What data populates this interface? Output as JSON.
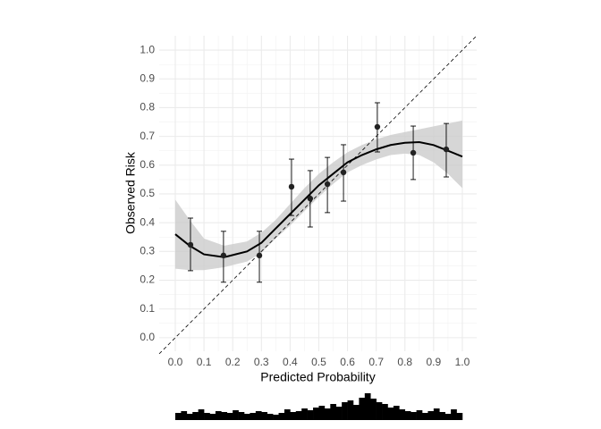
{
  "chart_data": {
    "type": "calibration",
    "xlabel": "Predicted Probability",
    "ylabel": "Observed Risk",
    "xlim": [
      -0.056,
      1.05
    ],
    "ylim": [
      -0.047,
      1.05
    ],
    "xticks": [
      {
        "value": 0,
        "label": "0.0"
      },
      0.1,
      0.2,
      0.3,
      0.4,
      0.5,
      0.6,
      0.7,
      0.8,
      0.9,
      {
        "value": 1,
        "label": "1.0"
      }
    ],
    "yticks": [
      {
        "value": 0,
        "label": "0.0"
      },
      0.1,
      0.2,
      0.3,
      0.4,
      0.5,
      0.6,
      0.7,
      0.8,
      0.9,
      {
        "value": 1,
        "label": "1.0"
      }
    ],
    "grid": true,
    "points": {
      "color": "#222222",
      "x": [
        0.053,
        0.168,
        0.293,
        0.405,
        0.47,
        0.53,
        0.586,
        0.704,
        0.829,
        0.944
      ],
      "y": [
        0.323,
        0.286,
        0.286,
        0.525,
        0.484,
        0.534,
        0.575,
        0.733,
        0.643,
        0.655
      ],
      "lower": [
        0.233,
        0.193,
        0.193,
        0.425,
        0.385,
        0.435,
        0.475,
        0.646,
        0.55,
        0.559
      ],
      "upper": [
        0.416,
        0.37,
        0.37,
        0.621,
        0.581,
        0.627,
        0.671,
        0.817,
        0.736,
        0.745
      ]
    },
    "curve": {
      "color": "#000000",
      "band_color": "#cccccc",
      "x": [
        0,
        0.05,
        0.1,
        0.17,
        0.25,
        0.3,
        0.35,
        0.4,
        0.45,
        0.5,
        0.55,
        0.6,
        0.65,
        0.7,
        0.75,
        0.8,
        0.85,
        0.9,
        0.95,
        1.0
      ],
      "y": [
        0.36,
        0.32,
        0.29,
        0.28,
        0.3,
        0.33,
        0.38,
        0.43,
        0.48,
        0.53,
        0.57,
        0.61,
        0.635,
        0.655,
        0.67,
        0.678,
        0.68,
        0.67,
        0.65,
        0.63
      ],
      "lower": [
        0.24,
        0.235,
        0.235,
        0.245,
        0.265,
        0.295,
        0.345,
        0.39,
        0.44,
        0.49,
        0.535,
        0.575,
        0.6,
        0.62,
        0.635,
        0.64,
        0.635,
        0.61,
        0.57,
        0.52
      ],
      "upper": [
        0.48,
        0.41,
        0.345,
        0.32,
        0.335,
        0.365,
        0.41,
        0.465,
        0.52,
        0.57,
        0.61,
        0.645,
        0.67,
        0.69,
        0.705,
        0.715,
        0.725,
        0.735,
        0.745,
        0.755
      ]
    },
    "histogram": {
      "color": "#000000",
      "bins": [
        0,
        0.02,
        0.04,
        0.06,
        0.08,
        0.1,
        0.12,
        0.14,
        0.16,
        0.18,
        0.2,
        0.22,
        0.24,
        0.26,
        0.28,
        0.3,
        0.32,
        0.34,
        0.36,
        0.38,
        0.4,
        0.42,
        0.44,
        0.46,
        0.48,
        0.5,
        0.52,
        0.54,
        0.56,
        0.58,
        0.6,
        0.62,
        0.64,
        0.66,
        0.68,
        0.7,
        0.72,
        0.74,
        0.76,
        0.78,
        0.8,
        0.82,
        0.84,
        0.86,
        0.88,
        0.9,
        0.92,
        0.94,
        0.96,
        0.98,
        1.0
      ],
      "counts": [
        8,
        10,
        7,
        9,
        12,
        8,
        7,
        10,
        9,
        8,
        11,
        9,
        7,
        8,
        10,
        9,
        7,
        6,
        8,
        12,
        9,
        10,
        13,
        11,
        14,
        16,
        13,
        18,
        15,
        20,
        22,
        17,
        25,
        30,
        24,
        20,
        18,
        14,
        16,
        12,
        10,
        9,
        11,
        8,
        10,
        13,
        9,
        7,
        12,
        8
      ]
    }
  }
}
